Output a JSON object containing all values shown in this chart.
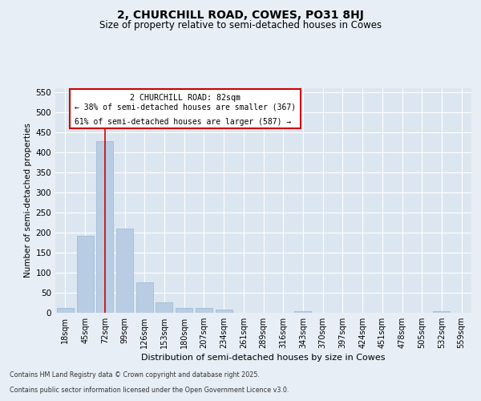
{
  "title": "2, CHURCHILL ROAD, COWES, PO31 8HJ",
  "subtitle": "Size of property relative to semi-detached houses in Cowes",
  "xlabel": "Distribution of semi-detached houses by size in Cowes",
  "ylabel": "Number of semi-detached properties",
  "categories": [
    "18sqm",
    "45sqm",
    "72sqm",
    "99sqm",
    "126sqm",
    "153sqm",
    "180sqm",
    "207sqm",
    "234sqm",
    "261sqm",
    "289sqm",
    "316sqm",
    "343sqm",
    "370sqm",
    "397sqm",
    "424sqm",
    "451sqm",
    "478sqm",
    "505sqm",
    "532sqm",
    "559sqm"
  ],
  "values": [
    12,
    193,
    428,
    210,
    77,
    27,
    12,
    12,
    8,
    1,
    0,
    0,
    4,
    0,
    0,
    0,
    0,
    0,
    0,
    4,
    0
  ],
  "bar_color": "#b8cce4",
  "bar_edgecolor": "#9ab8d0",
  "property_bin_index": 2,
  "annotation_title": "2 CHURCHILL ROAD: 82sqm",
  "annotation_line1": "← 38% of semi-detached houses are smaller (367)",
  "annotation_line2": "61% of semi-detached houses are larger (587) →",
  "annotation_box_color": "#ffffff",
  "annotation_box_edgecolor": "#cc0000",
  "vline_color": "#cc0000",
  "footnote1": "Contains HM Land Registry data © Crown copyright and database right 2025.",
  "footnote2": "Contains public sector information licensed under the Open Government Licence v3.0.",
  "bg_color": "#e8eef5",
  "plot_bg_color": "#dce6f0",
  "grid_color": "#ffffff",
  "ylim": [
    0,
    560
  ],
  "yticks": [
    0,
    50,
    100,
    150,
    200,
    250,
    300,
    350,
    400,
    450,
    500,
    550
  ]
}
